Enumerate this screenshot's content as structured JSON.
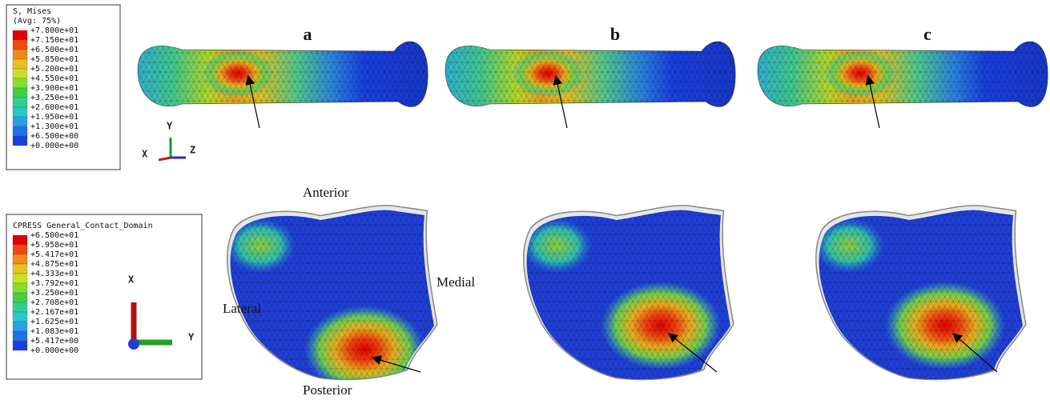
{
  "panels": [
    "a",
    "b",
    "c"
  ],
  "legend_mises": {
    "title": "S, Mises",
    "subtitle": "(Avg: 75%)",
    "labels": [
      "+7.800e+01",
      "+7.150e+01",
      "+6.500e+01",
      "+5.850e+01",
      "+5.200e+01",
      "+4.550e+01",
      "+3.900e+01",
      "+3.250e+01",
      "+2.600e+01",
      "+1.950e+01",
      "+1.300e+01",
      "+6.500e+00",
      "+0.000e+00"
    ]
  },
  "legend_cpress": {
    "title": "CPRESS  General_Contact_Domain",
    "labels": [
      "+6.500e+01",
      "+5.958e+01",
      "+5.417e+01",
      "+4.875e+01",
      "+4.333e+01",
      "+3.792e+01",
      "+3.250e+01",
      "+2.708e+01",
      "+2.167e+01",
      "+1.625e+01",
      "+1.083e+01",
      "+5.417e+00",
      "+0.000e+00"
    ]
  },
  "triad_top": {
    "x": "X",
    "y": "Y",
    "z": "Z"
  },
  "triad_bottom": {
    "x": "X",
    "y": "Y"
  },
  "orientation": {
    "anterior": "Anterior",
    "posterior": "Posterior",
    "lateral": "Lateral",
    "medial": "Medial"
  }
}
